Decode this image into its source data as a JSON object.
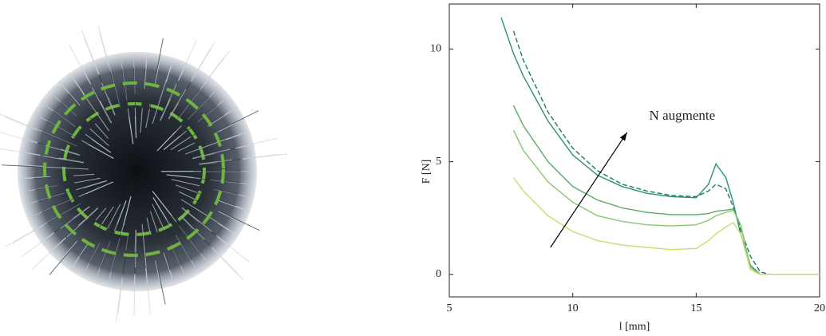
{
  "chart_data": {
    "type": "line",
    "x_label": "l [mm]",
    "y_label": "F [N]",
    "annotation": "N augmente",
    "arrow": {
      "from": [
        9.1,
        1.2
      ],
      "to": [
        12.2,
        6.3
      ]
    },
    "annotation_at": [
      13.1,
      7.0
    ],
    "xlim": [
      5,
      20
    ],
    "ylim": [
      -1,
      12
    ],
    "xticks": [
      5,
      10,
      15,
      20
    ],
    "yticks": [
      0,
      5,
      10
    ],
    "x": [
      7.1,
      7.6,
      8,
      9,
      10,
      11,
      12,
      13,
      14,
      15,
      15.5,
      15.8,
      16.2,
      16.5,
      16.8,
      17.2,
      17.6,
      18,
      19,
      20
    ],
    "series": [
      {
        "color": "#1d7a68",
        "dashed": true,
        "values": [
          null,
          10.8,
          9.5,
          7.2,
          5.6,
          4.6,
          4.0,
          3.7,
          3.5,
          3.45,
          3.7,
          4.0,
          3.8,
          3.0,
          2.0,
          0.8,
          0.1,
          0,
          0,
          0
        ]
      },
      {
        "color": "#2a9173",
        "dashed": false,
        "values": [
          11.4,
          9.8,
          8.8,
          6.8,
          5.3,
          4.4,
          3.9,
          3.6,
          3.45,
          3.4,
          4.0,
          4.9,
          4.3,
          3.2,
          1.8,
          0.4,
          0,
          0,
          0,
          0
        ]
      },
      {
        "color": "#5aab6a",
        "dashed": false,
        "values": [
          null,
          7.5,
          6.6,
          5.0,
          3.9,
          3.3,
          2.95,
          2.75,
          2.65,
          2.65,
          2.7,
          2.8,
          2.85,
          2.9,
          2.2,
          0.3,
          0,
          0,
          0,
          0
        ]
      },
      {
        "color": "#8cc46a",
        "dashed": false,
        "values": [
          null,
          6.4,
          5.5,
          4.1,
          3.2,
          2.6,
          2.35,
          2.2,
          2.15,
          2.2,
          2.4,
          2.6,
          2.75,
          2.85,
          2.2,
          0.3,
          0,
          0,
          0,
          0
        ]
      },
      {
        "color": "#c8de6a",
        "dashed": false,
        "values": [
          null,
          4.3,
          3.7,
          2.6,
          1.9,
          1.5,
          1.3,
          1.2,
          1.1,
          1.15,
          1.5,
          1.8,
          2.1,
          2.3,
          1.8,
          0.2,
          0,
          0,
          0,
          0
        ]
      }
    ]
  }
}
